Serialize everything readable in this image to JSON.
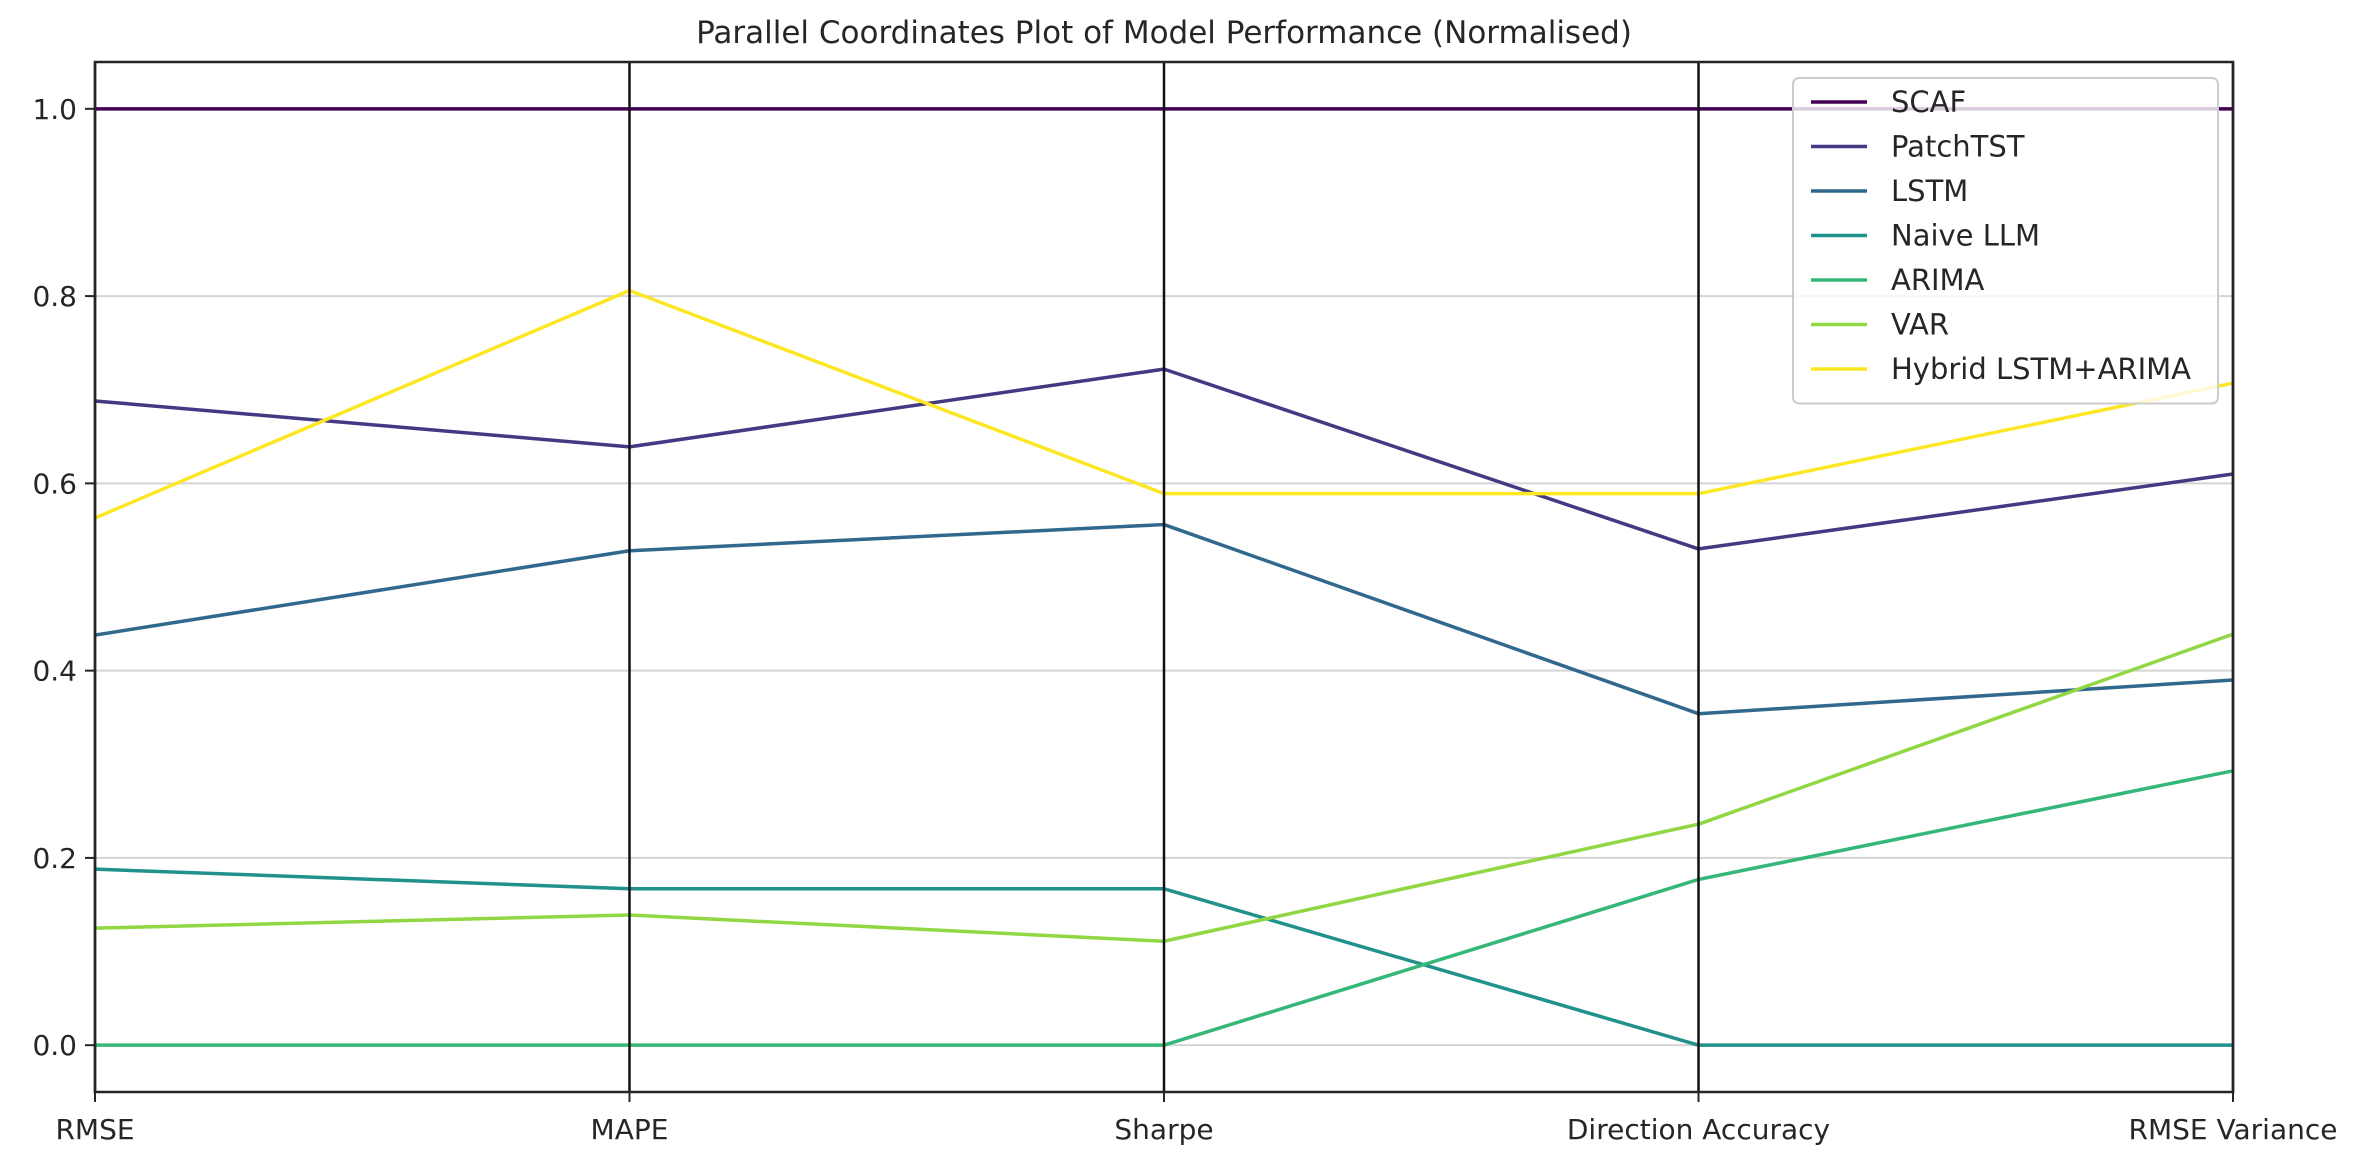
{
  "chart_data": {
    "type": "line",
    "subtype": "parallel-coordinates",
    "title": "Parallel Coordinates Plot of Model Performance (Normalised)",
    "xlabel": "",
    "ylabel": "",
    "categories": [
      "RMSE",
      "MAPE",
      "Sharpe",
      "Direction Accuracy",
      "RMSE Variance"
    ],
    "ylim": [
      -0.05,
      1.05
    ],
    "yticks": [
      "0.0",
      "0.2",
      "0.4",
      "0.6",
      "0.8",
      "1.0"
    ],
    "grid": "horizontal",
    "legend_position": "top-right",
    "series": [
      {
        "name": "SCAF",
        "color": "#440154",
        "values": [
          1.0,
          1.0,
          1.0,
          1.0,
          1.0
        ]
      },
      {
        "name": "PatchTST",
        "color": "#443983",
        "values": [
          0.688,
          0.639,
          0.722,
          0.53,
          0.61
        ]
      },
      {
        "name": "LSTM",
        "color": "#31688e",
        "values": [
          0.438,
          0.528,
          0.556,
          0.354,
          0.39
        ]
      },
      {
        "name": "Naive LLM",
        "color": "#21918c",
        "values": [
          0.188,
          0.167,
          0.167,
          0.0,
          0.0
        ]
      },
      {
        "name": "ARIMA",
        "color": "#35b779",
        "values": [
          0.0,
          0.0,
          0.0,
          0.177,
          0.293
        ]
      },
      {
        "name": "VAR",
        "color": "#90d743",
        "values": [
          0.125,
          0.139,
          0.111,
          0.236,
          0.439
        ]
      },
      {
        "name": "Hybrid LSTM+ARIMA",
        "color": "#fde725",
        "values": [
          0.563,
          0.806,
          0.589,
          0.589,
          0.707
        ]
      }
    ]
  }
}
